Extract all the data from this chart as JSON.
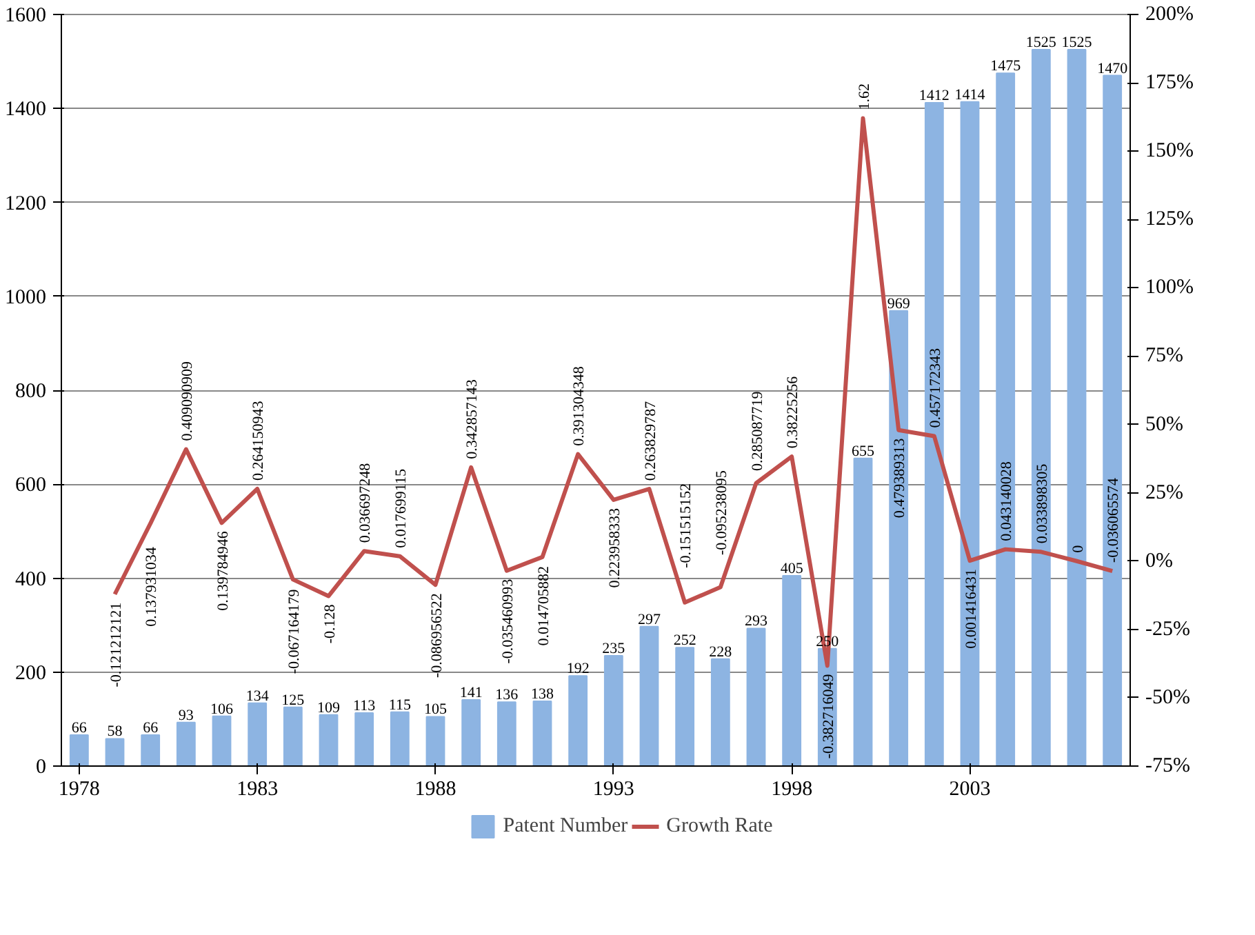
{
  "chart_data": {
    "type": "bar",
    "x": [
      1978,
      1979,
      1980,
      1981,
      1982,
      1983,
      1984,
      1985,
      1986,
      1987,
      1988,
      1989,
      1990,
      1991,
      1992,
      1993,
      1994,
      1995,
      1996,
      1997,
      1998,
      1999,
      2000,
      2001,
      2002,
      2003,
      2004,
      2005,
      2006,
      2007
    ],
    "series": [
      {
        "name": "Patent Number",
        "color": "#8db4e2",
        "values": [
          66,
          58,
          66,
          93,
          106,
          134,
          125,
          109,
          113,
          115,
          105,
          141,
          136,
          138,
          192,
          235,
          297,
          252,
          228,
          293,
          405,
          250,
          655,
          969,
          1412,
          1414,
          1475,
          1525,
          1525,
          1470
        ]
      },
      {
        "name": "Growth Rate",
        "type": "line",
        "axis": "y2",
        "color": "#c0504d",
        "x": [
          1979,
          1980,
          1981,
          1982,
          1983,
          1984,
          1985,
          1986,
          1987,
          1988,
          1989,
          1990,
          1991,
          1992,
          1993,
          1994,
          1995,
          1996,
          1997,
          1998,
          1999,
          2000,
          2001,
          2002,
          2003,
          2004,
          2005,
          2006,
          2007
        ],
        "values": [
          -0.121212121,
          0.137931034,
          0.409090909,
          0.139784946,
          0.264150943,
          -0.067164179,
          -0.128,
          0.036697248,
          0.017699115,
          -0.086956522,
          0.342857143,
          -0.035460993,
          0.014705882,
          0.391304348,
          0.223958333,
          0.263829787,
          -0.151515152,
          -0.095238095,
          0.285087719,
          0.38225256,
          -0.382716049,
          1.62,
          0.479389313,
          0.457172343,
          0.001416431,
          0.043140028,
          0.033898305,
          0,
          -0.036065574
        ]
      }
    ],
    "xlim": [
      1977.5,
      2007.5
    ],
    "xticks": [
      1978,
      1983,
      1988,
      1993,
      1998,
      2003
    ],
    "ylim": [
      0,
      1600
    ],
    "yticks": [
      0,
      200,
      400,
      600,
      800,
      1000,
      1200,
      1400,
      1600
    ],
    "y2lim": [
      -0.75,
      2.0
    ],
    "y2ticks": [
      {
        "value": -0.75,
        "label": "-75%"
      },
      {
        "value": -0.5,
        "label": "-50%"
      },
      {
        "value": -0.25,
        "label": "-25%"
      },
      {
        "value": 0,
        "label": "0%"
      },
      {
        "value": 0.25,
        "label": "25%"
      },
      {
        "value": 0.5,
        "label": "50%"
      },
      {
        "value": 0.75,
        "label": "75%"
      },
      {
        "value": 1.0,
        "label": "100%"
      },
      {
        "value": 1.25,
        "label": "125%"
      },
      {
        "value": 1.5,
        "label": "150%"
      },
      {
        "value": 1.75,
        "label": "175%"
      },
      {
        "value": 2.0,
        "label": "200%"
      }
    ],
    "data_labels": true,
    "grid": "y",
    "legend": "bottom"
  }
}
